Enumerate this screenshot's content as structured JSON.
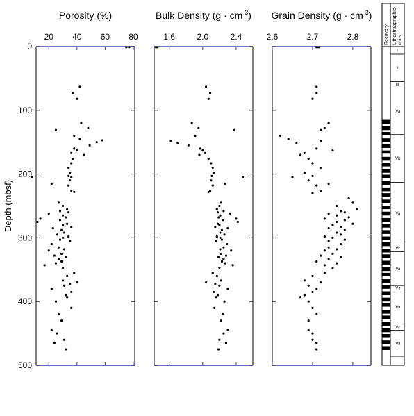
{
  "chart_data": [
    {
      "type": "scatter",
      "title": {
        "text": "Porosity (%)"
      },
      "y_label": "Depth (mbsf)",
      "xlim": [
        11,
        81
      ],
      "xticks": [
        20,
        40,
        60,
        80
      ],
      "ylim": [
        500,
        0
      ],
      "yticks": [
        0,
        100,
        200,
        300,
        400,
        500
      ],
      "x": [
        75,
        77,
        42,
        37,
        40,
        43,
        48,
        25,
        38,
        42,
        58,
        54,
        49,
        38,
        40,
        36,
        45,
        37,
        36,
        34,
        35,
        34,
        36,
        8,
        35,
        22,
        34,
        36,
        38,
        27,
        30,
        33,
        28,
        34,
        20,
        30,
        32,
        14,
        28,
        12,
        33,
        30,
        36,
        23,
        29,
        31,
        26,
        34,
        30,
        28,
        35,
        22,
        27,
        31,
        20,
        29,
        24,
        32,
        27,
        29,
        25,
        17,
        30,
        38,
        33,
        30,
        40,
        35,
        31,
        22,
        36,
        32,
        33,
        25,
        36,
        27,
        29,
        22,
        26,
        31,
        24,
        32
      ],
      "y": [
        1,
        1,
        63,
        73,
        82,
        120,
        128,
        131,
        140,
        145,
        147,
        150,
        155,
        160,
        163,
        167,
        170,
        176,
        183,
        190,
        198,
        203,
        205,
        205,
        210,
        215,
        218,
        226,
        228,
        245,
        250,
        255,
        258,
        260,
        262,
        265,
        268,
        270,
        272,
        275,
        278,
        280,
        283,
        285,
        288,
        292,
        295,
        298,
        300,
        303,
        305,
        310,
        315,
        318,
        320,
        325,
        328,
        330,
        333,
        337,
        340,
        343,
        347,
        355,
        360,
        367,
        370,
        372,
        375,
        380,
        385,
        390,
        393,
        400,
        410,
        420,
        430,
        445,
        450,
        460,
        465,
        475
      ]
    },
    {
      "type": "scatter",
      "title": {
        "text": "Bulk Density (g · cm",
        "superscript": "-3",
        "suffix": ")"
      },
      "xlim": [
        1.42,
        2.6
      ],
      "xticks": [
        1.6,
        {
          "value": 2,
          "label": "2.0"
        },
        2.4
      ],
      "ylim": [
        500,
        0
      ],
      "x": [
        1.44,
        1.46,
        2.04,
        2.09,
        2.07,
        1.87,
        1.95,
        2.38,
        1.91,
        1.62,
        1.7,
        1.83,
        1.97,
        2.0,
        2.03,
        1.96,
        2.07,
        2.1,
        2.12,
        2.13,
        2.11,
        2.48,
        2.1,
        2.27,
        2.12,
        2.09,
        2.07,
        2.22,
        2.2,
        2.17,
        2.25,
        2.18,
        2.33,
        2.21,
        2.19,
        2.4,
        2.24,
        2.42,
        2.18,
        2.2,
        2.15,
        2.3,
        2.23,
        2.21,
        2.26,
        2.17,
        2.21,
        2.23,
        2.16,
        2.29,
        2.25,
        2.21,
        2.34,
        2.22,
        2.28,
        2.19,
        2.25,
        2.23,
        2.27,
        2.36,
        2.2,
        2.12,
        2.17,
        2.22,
        2.04,
        2.15,
        2.2,
        2.3,
        2.13,
        2.18,
        2.16,
        2.26,
        2.14,
        2.24,
        2.22,
        2.3,
        2.25,
        2.2,
        2.28,
        2.19
      ],
      "y": [
        1,
        1,
        63,
        73,
        82,
        120,
        128,
        131,
        140,
        148,
        152,
        155,
        160,
        163,
        167,
        170,
        176,
        183,
        190,
        198,
        203,
        205,
        210,
        215,
        218,
        226,
        228,
        245,
        250,
        255,
        258,
        260,
        262,
        265,
        268,
        270,
        272,
        275,
        278,
        280,
        283,
        285,
        288,
        292,
        295,
        298,
        300,
        303,
        305,
        310,
        315,
        318,
        320,
        325,
        328,
        330,
        333,
        337,
        340,
        343,
        347,
        355,
        360,
        367,
        370,
        372,
        375,
        380,
        385,
        390,
        393,
        400,
        410,
        420,
        430,
        445,
        450,
        460,
        465,
        475
      ]
    },
    {
      "type": "scatter",
      "title": {
        "text": "Grain Density (g · cm",
        "superscript": "-3",
        "suffix": ")"
      },
      "xlim": [
        2.6,
        2.845
      ],
      "xticks": [
        2.6,
        2.7,
        2.8
      ],
      "ylim": [
        500,
        0
      ],
      "x": [
        2.71,
        2.715,
        2.71,
        2.71,
        2.7,
        2.74,
        2.73,
        2.72,
        2.62,
        2.64,
        2.72,
        2.66,
        2.71,
        2.75,
        2.68,
        2.67,
        2.69,
        2.7,
        2.72,
        2.68,
        2.7,
        2.65,
        2.69,
        2.74,
        2.71,
        2.72,
        2.7,
        2.79,
        2.8,
        2.76,
        2.81,
        2.77,
        2.78,
        2.74,
        2.76,
        2.79,
        2.73,
        2.78,
        2.76,
        2.8,
        2.75,
        2.77,
        2.74,
        2.78,
        2.76,
        2.77,
        2.73,
        2.75,
        2.78,
        2.74,
        2.77,
        2.74,
        2.76,
        2.73,
        2.75,
        2.72,
        2.77,
        2.74,
        2.71,
        2.76,
        2.73,
        2.75,
        2.73,
        2.7,
        2.68,
        2.72,
        2.69,
        2.71,
        2.7,
        2.68,
        2.67,
        2.69,
        2.7,
        2.71,
        2.69,
        2.69,
        2.7,
        2.7,
        2.71,
        2.71
      ],
      "y": [
        1,
        1,
        63,
        73,
        82,
        120,
        128,
        131,
        140,
        145,
        148,
        152,
        160,
        163,
        167,
        170,
        176,
        183,
        190,
        198,
        203,
        205,
        210,
        215,
        218,
        226,
        230,
        238,
        245,
        250,
        255,
        258,
        260,
        262,
        265,
        268,
        270,
        272,
        275,
        278,
        280,
        283,
        285,
        288,
        292,
        295,
        298,
        300,
        303,
        305,
        310,
        315,
        318,
        320,
        325,
        328,
        330,
        333,
        337,
        340,
        343,
        347,
        355,
        360,
        367,
        370,
        375,
        380,
        385,
        390,
        393,
        400,
        410,
        420,
        430,
        445,
        450,
        460,
        465,
        475
      ]
    }
  ],
  "lithology_column": {
    "headers": [
      "Recovery",
      "Lithostratigraphic-",
      "units"
    ],
    "units": [
      {
        "label": "I",
        "top": 0,
        "bottom": 12
      },
      {
        "label": "II",
        "top": 12,
        "bottom": 55
      },
      {
        "label": "III",
        "top": 55,
        "bottom": 65
      },
      {
        "label": "IVa",
        "top": 65,
        "bottom": 138
      },
      {
        "label": "IVb",
        "top": 138,
        "bottom": 213
      },
      {
        "label": "IVa",
        "top": 213,
        "bottom": 310
      },
      {
        "label": "IVc",
        "top": 310,
        "bottom": 322
      },
      {
        "label": "IVa",
        "top": 322,
        "bottom": 375
      },
      {
        "label": "IVc",
        "top": 375,
        "bottom": 382
      },
      {
        "label": "IVa",
        "top": 382,
        "bottom": 435
      },
      {
        "label": "IVc",
        "top": 435,
        "bottom": 445
      },
      {
        "label": "IVa",
        "top": 445,
        "bottom": 486
      }
    ],
    "cores": {
      "top": [
        115,
        125,
        134,
        144,
        153,
        163,
        173,
        182,
        192,
        201,
        211,
        221,
        230,
        240,
        250,
        259,
        269,
        278,
        288,
        298,
        307,
        317,
        326,
        336,
        346,
        355,
        365,
        374,
        384,
        394,
        403,
        413,
        422,
        432,
        442,
        451,
        461,
        470
      ],
      "length": [
        6,
        6,
        5,
        6,
        6,
        5,
        6,
        6,
        6,
        5,
        6,
        6,
        6,
        6,
        5,
        6,
        6,
        6,
        6,
        5,
        6,
        6,
        6,
        6,
        6,
        5,
        6,
        6,
        6,
        6,
        5,
        6,
        6,
        6,
        6,
        5,
        6,
        6
      ]
    }
  }
}
